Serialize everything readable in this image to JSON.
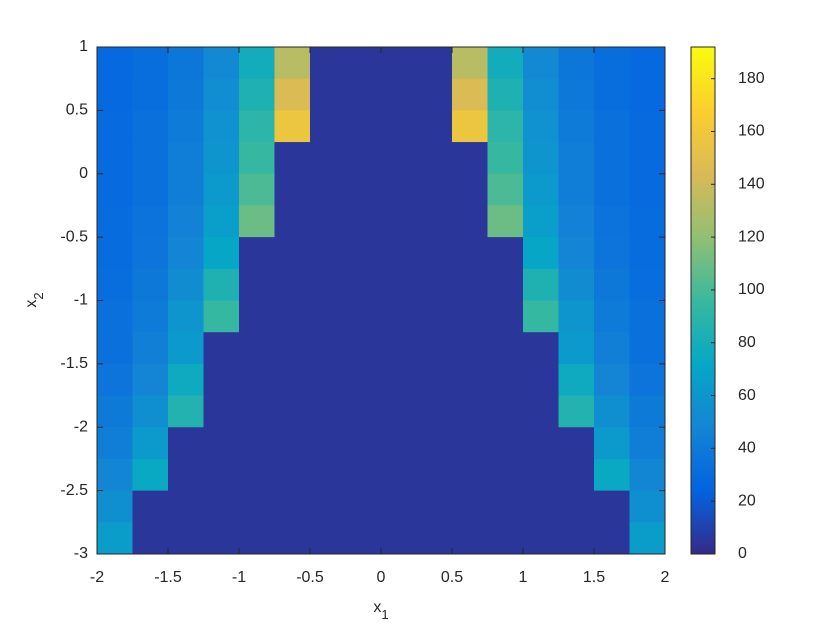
{
  "chart_data": {
    "type": "heatmap",
    "colormap": "parula",
    "xlabel": {
      "text": "x",
      "subscript": "1"
    },
    "ylabel": {
      "text": "x",
      "subscript": "2"
    },
    "xlim": [
      -2,
      2
    ],
    "ylim": [
      -3,
      1
    ],
    "xticks": [
      -2,
      -1.5,
      -1,
      -0.5,
      0,
      0.5,
      1,
      1.5,
      2
    ],
    "yticks": [
      -3,
      -2.5,
      -2,
      -1.5,
      -1,
      -0.5,
      0,
      0.5,
      1
    ],
    "clim": [
      0,
      192
    ],
    "cticks": [
      0,
      20,
      40,
      60,
      80,
      100,
      120,
      140,
      160,
      180
    ],
    "x": [
      -1.875,
      -1.625,
      -1.375,
      -1.125,
      -0.875,
      -0.625,
      -0.375,
      -0.125,
      0.125,
      0.375,
      0.625,
      0.875,
      1.125,
      1.375,
      1.625,
      1.875
    ],
    "y": [
      0.875,
      0.625,
      0.375,
      0.125,
      -0.125,
      -0.375,
      -0.625,
      -0.875,
      -1.125,
      -1.375,
      -1.625,
      -1.875,
      -2.125,
      -2.375,
      -2.625,
      -2.875
    ],
    "z": [
      [
        28,
        31,
        38,
        51,
        78,
        133,
        5,
        5,
        5,
        5,
        133,
        78,
        51,
        38,
        31,
        28
      ],
      [
        28,
        32,
        39,
        54,
        84,
        145,
        5,
        5,
        5,
        5,
        145,
        84,
        54,
        39,
        32,
        28
      ],
      [
        29,
        33,
        41,
        57,
        90,
        158,
        5,
        5,
        5,
        5,
        158,
        90,
        57,
        41,
        33,
        29
      ],
      [
        29,
        33,
        42,
        59,
        95,
        5,
        5,
        5,
        5,
        5,
        5,
        95,
        59,
        42,
        33,
        29
      ],
      [
        29,
        34,
        43,
        62,
        101,
        5,
        5,
        5,
        5,
        5,
        5,
        101,
        62,
        43,
        34,
        29
      ],
      [
        30,
        35,
        45,
        66,
        110,
        5,
        5,
        5,
        5,
        5,
        5,
        110,
        66,
        45,
        35,
        30
      ],
      [
        30,
        36,
        48,
        72,
        5,
        5,
        5,
        5,
        5,
        5,
        5,
        5,
        72,
        48,
        36,
        30
      ],
      [
        32,
        39,
        53,
        84,
        5,
        5,
        5,
        5,
        5,
        5,
        5,
        5,
        84,
        53,
        39,
        32
      ],
      [
        33,
        41,
        59,
        94,
        5,
        5,
        5,
        5,
        5,
        5,
        5,
        5,
        94,
        59,
        41,
        33
      ],
      [
        34,
        44,
        63,
        5,
        5,
        5,
        5,
        5,
        5,
        5,
        5,
        5,
        5,
        63,
        44,
        34
      ],
      [
        36,
        48,
        76,
        5,
        5,
        5,
        5,
        5,
        5,
        5,
        5,
        5,
        5,
        76,
        48,
        36
      ],
      [
        40,
        55,
        86,
        5,
        5,
        5,
        5,
        5,
        5,
        5,
        5,
        5,
        5,
        86,
        55,
        40
      ],
      [
        43,
        62,
        5,
        5,
        5,
        5,
        5,
        5,
        5,
        5,
        5,
        5,
        5,
        5,
        62,
        43
      ],
      [
        49,
        74,
        5,
        5,
        5,
        5,
        5,
        5,
        5,
        5,
        5,
        5,
        5,
        5,
        74,
        49
      ],
      [
        55,
        5,
        5,
        5,
        5,
        5,
        5,
        5,
        5,
        5,
        5,
        5,
        5,
        5,
        5,
        55
      ],
      [
        65,
        5,
        5,
        5,
        5,
        5,
        5,
        5,
        5,
        5,
        5,
        5,
        5,
        5,
        5,
        65
      ]
    ]
  }
}
